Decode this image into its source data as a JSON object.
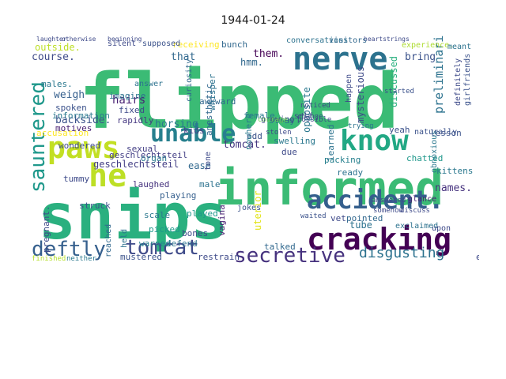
{
  "title": "1944-01-24",
  "palette": [
    "#440154",
    "#482878",
    "#3e4989",
    "#31688e",
    "#26828e",
    "#1f9e89",
    "#35b779",
    "#6ece58",
    "#b5de2b",
    "#fde725"
  ],
  "words": [
    {
      "text": "flipped",
      "color": "#3bbb75"
    },
    {
      "text": "snips",
      "color": "#2ab07f"
    },
    {
      "text": "informed",
      "color": "#3bbb75"
    },
    {
      "text": "paws",
      "color": "#c2df23"
    },
    {
      "text": "he",
      "color": "#bddf26"
    },
    {
      "text": "nerve",
      "color": "#2c728e"
    },
    {
      "text": "know",
      "color": "#22a884"
    },
    {
      "text": "unable",
      "color": "#27808e"
    },
    {
      "text": "cracking",
      "color": "#440154"
    },
    {
      "text": "accident.",
      "color": "#355f8d"
    },
    {
      "text": "sauntered",
      "color": "#1f988b"
    },
    {
      "text": "deftly",
      "color": "#355f8d"
    },
    {
      "text": "tomcat",
      "color": "#3e4a89"
    },
    {
      "text": "secretive",
      "color": "#46327e"
    },
    {
      "text": "disgusting",
      "color": "#2c728e"
    },
    {
      "text": "geschlechtsteil",
      "color": "#433e85"
    },
    {
      "text": "backside.",
      "color": "#3b528b"
    },
    {
      "text": "hairs",
      "color": "#482173"
    },
    {
      "text": "weigh",
      "color": "#355f8d"
    },
    {
      "text": "horsing",
      "color": "#2a788e"
    },
    {
      "text": "tomcat.",
      "color": "#453781"
    },
    {
      "text": "that",
      "color": "#31688e"
    },
    {
      "text": "course.",
      "color": "#3e4a89"
    },
    {
      "text": "outside.",
      "color": "#bddf26"
    },
    {
      "text": "them.",
      "color": "#440154"
    },
    {
      "text": "hmm.",
      "color": "#31688e"
    },
    {
      "text": "bring",
      "color": "#3b528b"
    },
    {
      "text": "preliminaries",
      "color": "#2c728e"
    },
    {
      "text": "experience.",
      "color": "#addc30"
    },
    {
      "text": "mysterious",
      "color": "#3e4a89"
    },
    {
      "text": "opposite",
      "color": "#2a788e"
    },
    {
      "text": "discussed",
      "color": "#2ab07f"
    },
    {
      "text": "names.",
      "color": "#46327e"
    },
    {
      "text": "uterior",
      "color": "#e2e418"
    },
    {
      "text": "struck",
      "color": "#3b528b"
    },
    {
      "text": "pregnant.",
      "color": "#3e4a89"
    },
    {
      "text": "geschlechtsteil",
      "color": "#433e85"
    },
    {
      "text": "ease",
      "color": "#31688e"
    },
    {
      "text": "swelling",
      "color": "#2a788e"
    },
    {
      "text": "packing",
      "color": "#27808e"
    },
    {
      "text": "chatted",
      "color": "#1f988b"
    },
    {
      "text": "kittens",
      "color": "#2a788e"
    },
    {
      "text": "lesson",
      "color": "#3b528b"
    },
    {
      "text": "tube",
      "color": "#2c728e"
    },
    {
      "text": "talked",
      "color": "#31688e"
    },
    {
      "text": "vagina",
      "color": "#482173"
    },
    {
      "text": "restrain",
      "color": "#3e4a89"
    },
    {
      "text": "mustered",
      "color": "#3b528b"
    },
    {
      "text": "exact",
      "color": "#3e4a89"
    },
    {
      "text": "defend",
      "color": "#2c728e"
    },
    {
      "text": "picked",
      "color": "#1f988b"
    },
    {
      "text": "played",
      "color": "#1f988b"
    },
    {
      "text": "bones",
      "color": "#3e4a89"
    },
    {
      "text": "scale",
      "color": "#2a788e"
    },
    {
      "text": "warned",
      "color": "#26828e"
    },
    {
      "text": "held",
      "color": "#2c728e"
    },
    {
      "text": "reached",
      "color": "#31688e"
    },
    {
      "text": "tummy",
      "color": "#3e4a89"
    },
    {
      "text": "motives",
      "color": "#482173"
    },
    {
      "text": "wondered",
      "color": "#3e4a89"
    },
    {
      "text": "males.",
      "color": "#2a788e"
    },
    {
      "text": "spoken",
      "color": "#3b528b"
    },
    {
      "text": "information",
      "color": "#2a788e"
    },
    {
      "text": "accusation",
      "color": "#fde725"
    },
    {
      "text": "fixed",
      "color": "#3e4a89"
    },
    {
      "text": "rapidly",
      "color": "#453781"
    },
    {
      "text": "imagine",
      "color": "#2c728e"
    },
    {
      "text": "awkward",
      "color": "#31688e"
    },
    {
      "text": "female",
      "color": "#2a788e"
    },
    {
      "text": "stray",
      "color": "#2c728e"
    },
    {
      "text": "sexual",
      "color": "#433e85"
    },
    {
      "text": "organ",
      "color": "#2a788e"
    },
    {
      "text": "laughed",
      "color": "#46327e"
    },
    {
      "text": "playing",
      "color": "#355f8d"
    },
    {
      "text": "male",
      "color": "#2c728e"
    },
    {
      "text": "kids",
      "color": "#433e85"
    },
    {
      "text": "whisper",
      "color": "#2c728e"
    },
    {
      "text": "anesthetic",
      "color": "#31688e"
    },
    {
      "text": "odd",
      "color": "#3b528b"
    },
    {
      "text": "nowhere",
      "color": "#2a788e"
    },
    {
      "text": "due",
      "color": "#3e4a89"
    },
    {
      "text": "ready",
      "color": "#2c728e"
    },
    {
      "text": "learned",
      "color": "#2c728e"
    },
    {
      "text": "vet",
      "color": "#3e4a89"
    },
    {
      "text": "pointed",
      "color": "#31688e"
    },
    {
      "text": "yeah",
      "color": "#3b528b"
    },
    {
      "text": "receiving",
      "color": "#fde725"
    },
    {
      "text": "bunch",
      "color": "#31688e"
    },
    {
      "text": "supposed",
      "color": "#3b528b"
    },
    {
      "text": "silent",
      "color": "#3e4a89"
    },
    {
      "text": "conversations",
      "color": "#2c728e"
    },
    {
      "text": "visitors",
      "color": "#31688e"
    },
    {
      "text": "jokes",
      "color": "#3b528b"
    },
    {
      "text": "tone",
      "color": "#3e4a89"
    },
    {
      "text": "obnoxious",
      "color": "#2a788e"
    },
    {
      "text": "exclaimed",
      "color": "#2c728e"
    },
    {
      "text": "self",
      "color": "#3e4a89"
    },
    {
      "text": "upon",
      "color": "#3e4a89"
    },
    {
      "text": "glance",
      "color": "#482173"
    },
    {
      "text": "naturally",
      "color": "#3b528b"
    },
    {
      "text": "growing",
      "color": "#3e4a89"
    },
    {
      "text": "curiosity",
      "color": "#31688e"
    },
    {
      "text": "answer",
      "color": "#2c728e"
    },
    {
      "text": "definitely",
      "color": "#3e4a89"
    },
    {
      "text": "girlfriends",
      "color": "#3b528b"
    },
    {
      "text": "meant",
      "color": "#2c728e"
    },
    {
      "text": "happen",
      "color": "#3e4a89"
    },
    {
      "text": "stolen",
      "color": "#3e4a89"
    },
    {
      "text": "courage",
      "color": "#6ece58"
    },
    {
      "text": "noticed",
      "color": "#3e4a89"
    },
    {
      "text": "possible",
      "color": "#3e4a89"
    },
    {
      "text": "started",
      "color": "#3b528b"
    },
    {
      "text": "trying",
      "color": "#2c728e"
    },
    {
      "text": "change",
      "color": "#3e4a89"
    },
    {
      "text": "waited",
      "color": "#3b528b"
    },
    {
      "text": "answered",
      "color": "#3e4a89"
    },
    {
      "text": "somehow",
      "color": "#3e4a89"
    },
    {
      "text": "discuss",
      "color": "#3e4a89"
    },
    {
      "text": "neither",
      "color": "#2a788e"
    },
    {
      "text": "finished",
      "color": "#b5de2b"
    },
    {
      "text": "laughter",
      "color": "#3e4a89"
    },
    {
      "text": "otherwise",
      "color": "#3e4a89"
    },
    {
      "text": "beginning",
      "color": "#3e4a89"
    },
    {
      "text": "heartstrings",
      "color": "#3e4a89"
    }
  ]
}
